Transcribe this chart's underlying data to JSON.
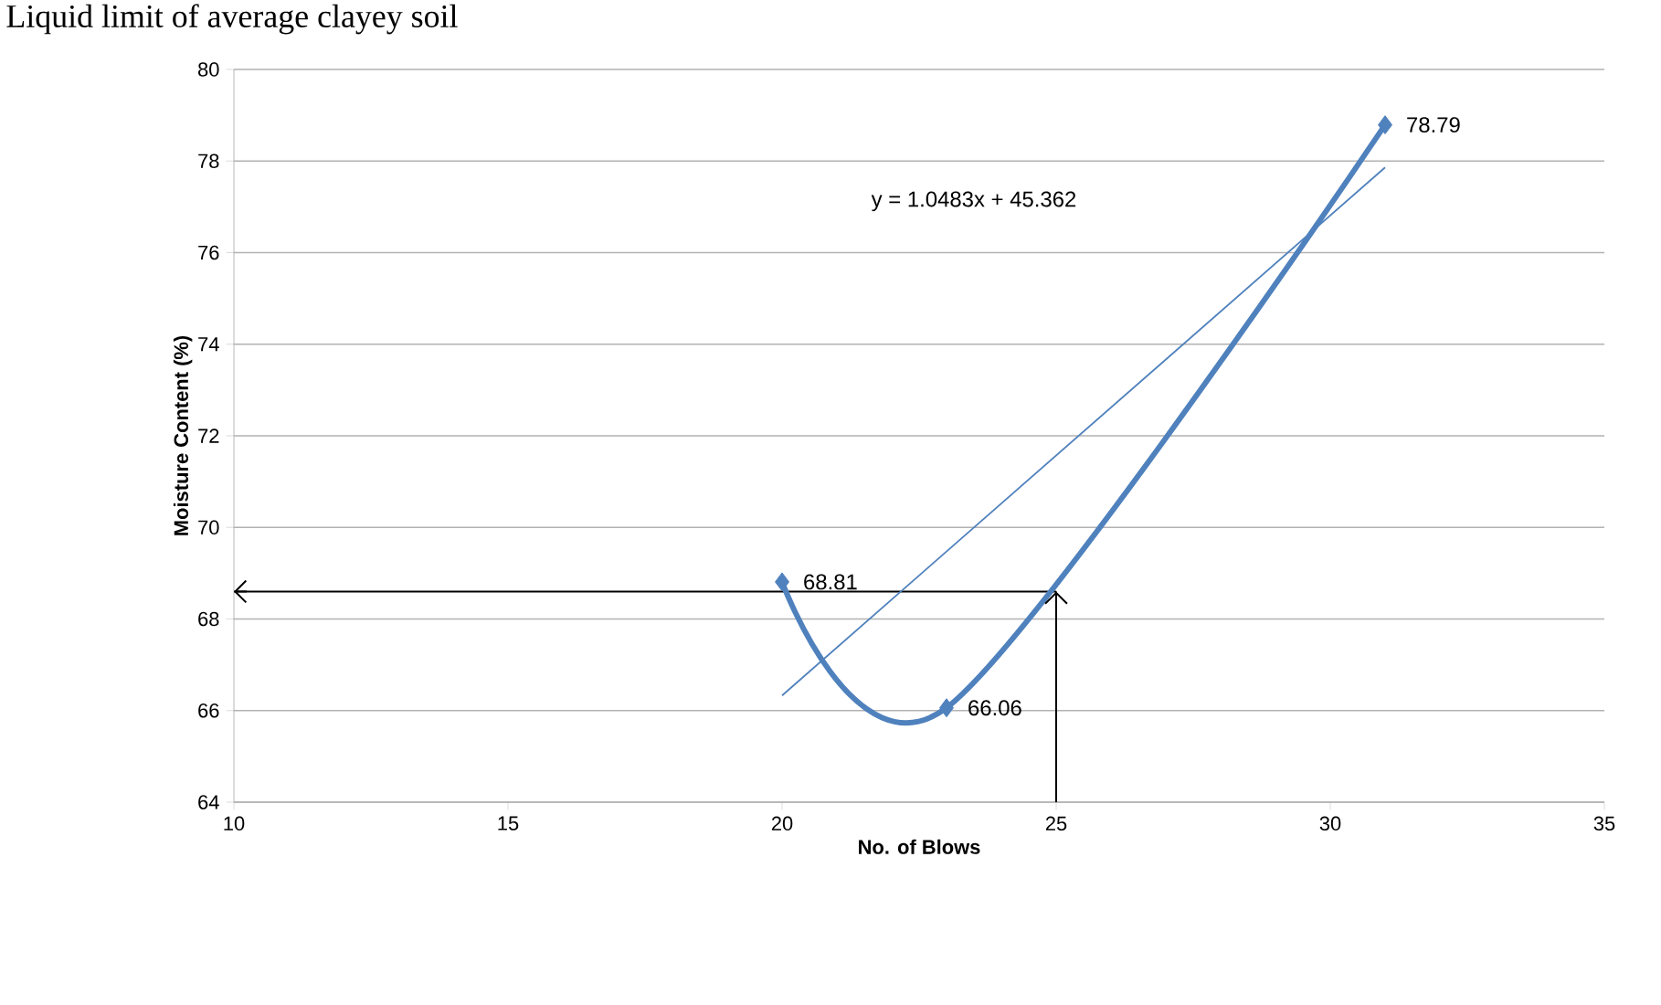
{
  "chart_data": {
    "type": "line",
    "title": "Liquid limit of average clayey soil",
    "xlabel": "No. of Blows",
    "ylabel": "Moisture Content (%)",
    "series": [
      {
        "x": [
          20,
          23,
          31
        ],
        "values": [
          68.81,
          66.06,
          78.79
        ],
        "color": "#4f81bd",
        "value_labels": [
          "68.81",
          "66.06",
          "78.79"
        ]
      },
      {
        "x": [
          20,
          31
        ],
        "values": [
          66.33,
          77.86
        ],
        "color": "#4f81bd",
        "marker": "none"
      }
    ],
    "annotations": [
      "y = 1.0483x + 45.362"
    ],
    "ref_lines": [
      {
        "axis": "x",
        "value": 25,
        "color": "#000000"
      },
      {
        "axis": "y",
        "value": 68.6,
        "color": "#000000"
      }
    ],
    "xlim": [
      10,
      35
    ],
    "xticks": [
      10,
      15,
      20,
      25,
      30,
      35
    ],
    "ylim": [
      64,
      80
    ],
    "yticks": [
      64,
      66,
      68,
      70,
      72,
      74,
      76,
      78,
      80
    ],
    "grid": "y",
    "marker": "diamond"
  }
}
